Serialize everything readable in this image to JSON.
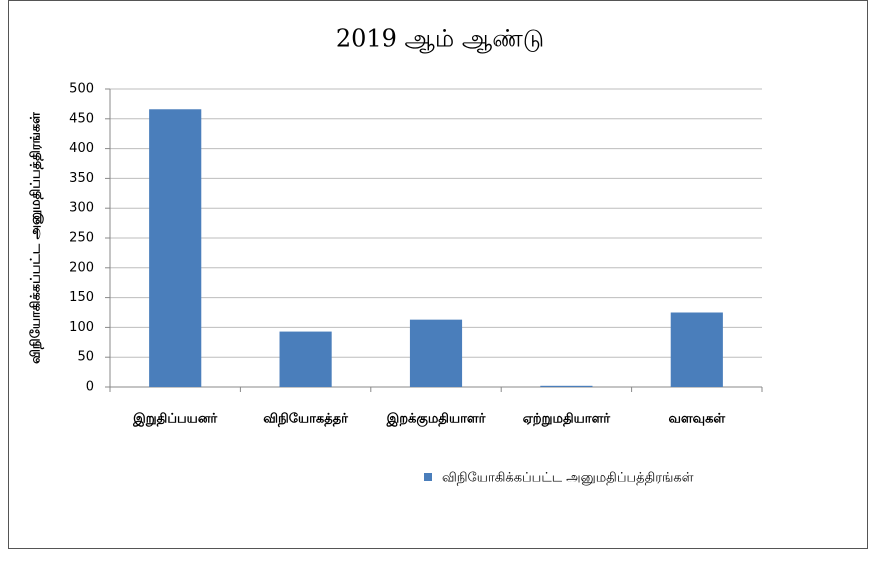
{
  "chart_data": {
    "type": "bar",
    "title": "2019 ஆம் ஆண்டு",
    "y_label": "விநியோகிக்கப்பட்ட அனுமதிப்பத்திரங்கள்",
    "categories": [
      "இறுதிப்பயனர்",
      "விநியோகத்தர்",
      "இறக்குமதியாளர்",
      "ஏற்றுமதியாளர்",
      "வளவுகள்"
    ],
    "series": [
      {
        "name": "விநியோகிக்கப்பட்ட அனுமதிப்பத்திரங்கள்",
        "color": "#4a7ebb",
        "values": [
          466,
          93,
          113,
          2,
          125
        ]
      }
    ],
    "ylim": [
      0,
      500
    ],
    "yticks": [
      0,
      50,
      100,
      150,
      200,
      250,
      300,
      350,
      400,
      450,
      500
    ],
    "grid": true,
    "legend": "bottom"
  }
}
